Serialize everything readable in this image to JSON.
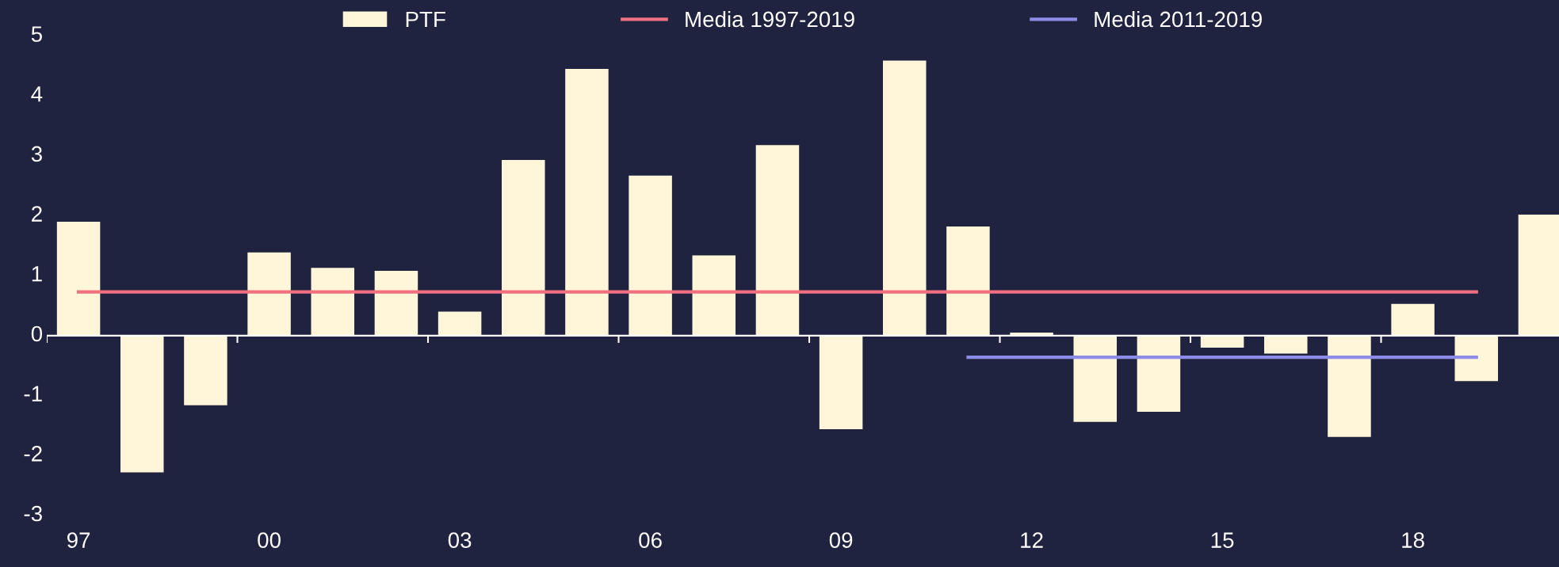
{
  "chart_data": {
    "type": "bar",
    "categories": [
      "97",
      null,
      null,
      "00",
      null,
      null,
      "03",
      null,
      null,
      "06",
      null,
      null,
      "09",
      null,
      null,
      "12",
      null,
      null,
      "15",
      null,
      null,
      "18",
      null,
      null
    ],
    "series": [
      {
        "name": "PTF",
        "color": "#fff5d9",
        "values": [
          1.9,
          -2.28,
          -1.16,
          1.39,
          1.13,
          1.08,
          0.4,
          2.93,
          4.45,
          2.67,
          1.34,
          3.18,
          -1.56,
          4.59,
          1.82,
          0.05,
          -1.44,
          -1.27,
          -0.2,
          -0.3,
          -1.69,
          0.53,
          -0.76,
          2.02
        ]
      },
      {
        "name": "Media 1997-2019",
        "type": "line",
        "color": "#f07080",
        "values": [
          0.73,
          0.73,
          0.73,
          0.73,
          0.73,
          0.73,
          0.73,
          0.73,
          0.73,
          0.73,
          0.73,
          0.73,
          0.73,
          0.73,
          0.73,
          0.73,
          0.73,
          0.73,
          0.73,
          0.73,
          0.73,
          0.73,
          0.73,
          null
        ]
      },
      {
        "name": "Media 2011-2019",
        "type": "line",
        "color": "#8c8ce6",
        "values": [
          null,
          null,
          null,
          null,
          null,
          null,
          null,
          null,
          null,
          null,
          null,
          null,
          null,
          null,
          -0.36,
          -0.36,
          -0.36,
          -0.36,
          -0.36,
          -0.36,
          -0.36,
          -0.36,
          -0.36,
          null
        ]
      }
    ],
    "ylim": [
      -3.86,
      5.6
    ],
    "yticks": [
      -3,
      -2,
      -1,
      0,
      1,
      2,
      3,
      4,
      5
    ],
    "ref_lines": [
      {
        "axis": "y",
        "value": 0,
        "color": "#ffffff"
      }
    ],
    "grid": false,
    "legend": "top"
  }
}
